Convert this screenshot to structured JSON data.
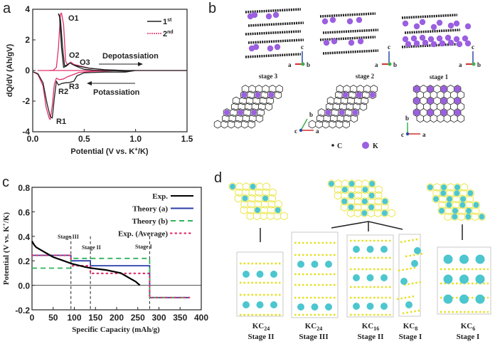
{
  "panels": {
    "a": "a",
    "b": "b",
    "c": "c",
    "d": "d"
  },
  "chart_data": [
    {
      "panel": "a",
      "type": "line",
      "xlabel": "Potential (V vs. K+/K)",
      "xlabel_parts": {
        "pre": "Potential (V vs. K",
        "sup": "+",
        "post": "/K)"
      },
      "ylabel": "dQ/dV (Ah/gV)",
      "xlim": [
        0,
        1.5
      ],
      "ylim": [
        -4,
        4
      ],
      "xticks": [
        "0.0",
        "0.5",
        "1.0",
        "1.5"
      ],
      "yticks": [
        "-4",
        "-2",
        "0",
        "2",
        "4"
      ],
      "xtick_values": [
        0,
        0.5,
        1.0,
        1.5
      ],
      "ytick_values": [
        -4,
        -2,
        0,
        2,
        4
      ],
      "legend_position": "top-right",
      "series": [
        {
          "name": "1st",
          "name_base": "1",
          "name_sup": "st",
          "color": "#222222",
          "x": [
            0.0,
            0.05,
            0.1,
            0.14,
            0.17,
            0.19,
            0.21,
            0.23,
            0.25,
            0.28,
            0.32,
            0.36,
            0.4,
            0.43,
            0.5,
            0.7,
            0.9,
            1.0,
            0.95,
            0.8,
            0.6,
            0.5,
            0.45,
            0.4,
            0.36,
            0.33,
            0.3,
            0.28,
            0.26,
            0.25,
            0.27,
            0.29,
            0.31,
            0.33,
            0.36,
            0.4,
            0.47,
            0.55,
            0.7,
            0.9,
            1.5
          ],
          "y": [
            -0.08,
            -0.2,
            -0.8,
            -2.2,
            -3.0,
            -3.1,
            -1.8,
            -0.7,
            -0.95,
            -0.85,
            -0.8,
            -0.78,
            -0.7,
            -0.35,
            -0.15,
            -0.1,
            -0.1,
            0.0,
            -0.05,
            -0.02,
            0.02,
            0.08,
            0.2,
            0.35,
            0.5,
            0.3,
            0.2,
            1.5,
            3.6,
            3.7,
            3.3,
            1.5,
            0.3,
            0.35,
            0.5,
            0.35,
            0.25,
            0.15,
            0.05,
            0.0,
            0.0
          ]
        },
        {
          "name": "2nd",
          "name_base": "2",
          "name_sup": "nd",
          "color": "#e0306a",
          "x": [
            0.0,
            0.05,
            0.1,
            0.13,
            0.16,
            0.17,
            0.19,
            0.21,
            0.23,
            0.26,
            0.3,
            0.34,
            0.38,
            0.45,
            0.6,
            0.8,
            1.0,
            1.5,
            0.05,
            0.15,
            0.2,
            0.23,
            0.25,
            0.27,
            0.28,
            0.3,
            0.32,
            0.34,
            0.37,
            0.4,
            0.47,
            0.55,
            0.7,
            0.9,
            1.5
          ],
          "y": [
            -0.08,
            -0.25,
            -1.0,
            -2.4,
            -3.1,
            -3.2,
            -2.3,
            -0.9,
            -0.5,
            -0.6,
            -0.55,
            -0.4,
            -0.3,
            -0.12,
            -0.05,
            -0.02,
            0.0,
            0.0,
            0.0,
            0.0,
            0.02,
            0.2,
            1.5,
            3.7,
            3.75,
            3.0,
            0.6,
            0.35,
            0.55,
            0.4,
            0.28,
            0.15,
            0.05,
            0.0,
            0.0
          ]
        }
      ],
      "annotations": {
        "O1": "O1",
        "O2": "O2",
        "O3": "O3",
        "R1": "R1",
        "R2": "R2",
        "R3": "R3",
        "depot": "Depotassiation",
        "pot": "Potassiation"
      }
    },
    {
      "panel": "c",
      "type": "line",
      "xlabel": "Specific Capacity (mAh/g)",
      "ylabel": "Potential (V vs. K+/K)",
      "ylabel_parts": {
        "pre": "Potential (V vs. K",
        "sup": "+",
        "post": "/K)"
      },
      "xlim": [
        0,
        400
      ],
      "ylim": [
        -0.2,
        0.8
      ],
      "xticks": [
        "0",
        "50",
        "100",
        "150",
        "200",
        "250",
        "300",
        "350",
        "400"
      ],
      "xtick_values": [
        0,
        50,
        100,
        150,
        200,
        250,
        300,
        350,
        400
      ],
      "yticks": [
        "-0.2",
        "0.0",
        "0.2",
        "0.4",
        "0.6",
        "0.8"
      ],
      "ytick_values": [
        -0.2,
        0.0,
        0.2,
        0.4,
        0.6,
        0.8
      ],
      "legend_position": "top-right",
      "series": [
        {
          "name": "Exp.",
          "color": "#000000",
          "style": "solid",
          "x": [
            0,
            5,
            10,
            25,
            50,
            75,
            95,
            125,
            140,
            175,
            210,
            230,
            245,
            255
          ],
          "y": [
            0.36,
            0.33,
            0.31,
            0.28,
            0.23,
            0.2,
            0.175,
            0.15,
            0.14,
            0.125,
            0.1,
            0.06,
            0.03,
            0.0
          ]
        },
        {
          "name": "Theory (a)",
          "color": "#2a3fa8",
          "style": "solid",
          "x": [
            0,
            92,
            92,
            138,
            138,
            278,
            278,
            372
          ],
          "y": [
            0.245,
            0.245,
            0.2,
            0.2,
            0.16,
            0.16,
            -0.1,
            -0.1
          ]
        },
        {
          "name": "Theory (b)",
          "color": "#2eb35a",
          "style": "dashed",
          "x": [
            0,
            92,
            92,
            278,
            278,
            372
          ],
          "y": [
            0.14,
            0.14,
            0.22,
            0.22,
            -0.1,
            -0.1
          ]
        },
        {
          "name": "Exp. (Average)",
          "color": "#e0306a",
          "style": "dotted",
          "x": [
            0,
            92,
            92,
            138,
            138,
            278,
            278,
            372
          ],
          "y": [
            0.245,
            0.245,
            0.16,
            0.16,
            0.097,
            0.097,
            -0.1,
            -0.1
          ]
        }
      ],
      "stage_lines": [
        {
          "label": "Stage III",
          "x": 92
        },
        {
          "label": "Stage II",
          "x": 138
        },
        {
          "label": "Stage I",
          "x": 278
        }
      ]
    }
  ],
  "panel_b": {
    "stages": [
      "stage 3",
      "stage 2",
      "stage 1"
    ],
    "axes_side": [
      {
        "a": "a",
        "b": "b",
        "c": "c"
      },
      {
        "a": "a",
        "b": "b",
        "c": "c"
      },
      {
        "a": "a",
        "b": "b",
        "c": "c"
      }
    ],
    "axes_top": [
      {
        "a": "a",
        "b": "b",
        "c": "c"
      },
      {
        "a": "a",
        "b": "b",
        "c": "c"
      },
      {
        "a": "a",
        "b": "b",
        "c": "c"
      }
    ],
    "legend": {
      "carbon": "C",
      "potassium": "K"
    },
    "colors": {
      "carbon": "#222222",
      "potassium": "#9b5fe0"
    }
  },
  "panel_d": {
    "structures": [
      {
        "formula": "KC",
        "sub": "24",
        "stage": "Stage II"
      },
      {
        "formula": "KC",
        "sub": "24",
        "stage": "Stage III"
      },
      {
        "formula": "KC",
        "sub": "16",
        "stage": "Stage II"
      },
      {
        "formula": "KC",
        "sub": "8",
        "stage": "Stage I"
      },
      {
        "formula": "KC",
        "sub": "6",
        "stage": "Stage I"
      }
    ],
    "colors": {
      "carbon": "#e6e020",
      "potassium": "#4cc6cf"
    }
  }
}
